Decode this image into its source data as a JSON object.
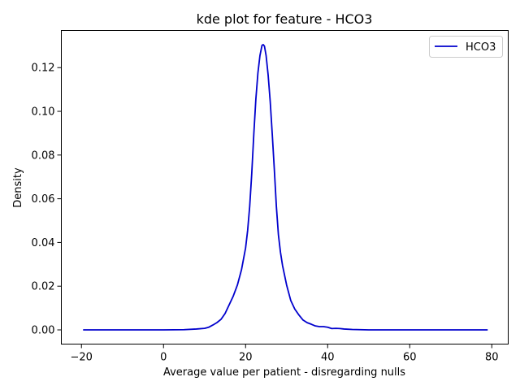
{
  "chart_data": {
    "type": "line",
    "title": "kde plot for feature -  HCO3",
    "xlabel": "Average value per patient - disregarding nulls",
    "ylabel": "Density",
    "xlim": [
      -24.9,
      84.0
    ],
    "ylim": [
      -0.0065,
      0.137
    ],
    "xticks": [
      -20,
      0,
      20,
      40,
      60,
      80
    ],
    "xtick_labels": [
      "−20",
      "0",
      "20",
      "40",
      "60",
      "80"
    ],
    "yticks": [
      0.0,
      0.02,
      0.04,
      0.06,
      0.08,
      0.1,
      0.12
    ],
    "ytick_labels": [
      "0.00",
      "0.02",
      "0.04",
      "0.06",
      "0.08",
      "0.10",
      "0.12"
    ],
    "grid": false,
    "legend": {
      "position": "top-right"
    },
    "series": [
      {
        "name": "HCO3",
        "color": "#0000cd",
        "x": [
          -19.6,
          -10,
          0,
          5,
          8,
          10,
          11,
          12,
          13,
          14,
          15,
          16,
          17,
          18,
          19,
          20,
          20.5,
          21,
          21.5,
          22,
          22.5,
          23,
          23.5,
          24,
          24.3,
          24.6,
          25,
          25.5,
          26,
          26.5,
          27,
          27.5,
          28,
          28.5,
          29,
          30,
          31,
          32,
          33,
          34,
          35,
          36,
          37,
          38,
          39,
          40,
          41,
          42,
          43,
          44,
          46,
          50,
          60,
          70,
          79
        ],
        "y": [
          0.0,
          0.0,
          0.0,
          0.0001,
          0.0004,
          0.0007,
          0.0012,
          0.0022,
          0.0033,
          0.0048,
          0.0075,
          0.0115,
          0.0155,
          0.0205,
          0.0275,
          0.0375,
          0.0455,
          0.0565,
          0.0715,
          0.0895,
          0.1055,
          0.1175,
          0.1255,
          0.1302,
          0.1305,
          0.1298,
          0.1255,
          0.1165,
          0.1045,
          0.0895,
          0.0735,
          0.0565,
          0.0435,
          0.0355,
          0.0295,
          0.0205,
          0.0135,
          0.0095,
          0.0068,
          0.0045,
          0.0033,
          0.0026,
          0.0018,
          0.0015,
          0.0015,
          0.0012,
          0.0006,
          0.0007,
          0.0006,
          0.0004,
          0.0002,
          0.0,
          0.0,
          0.0,
          0.0
        ]
      }
    ]
  }
}
